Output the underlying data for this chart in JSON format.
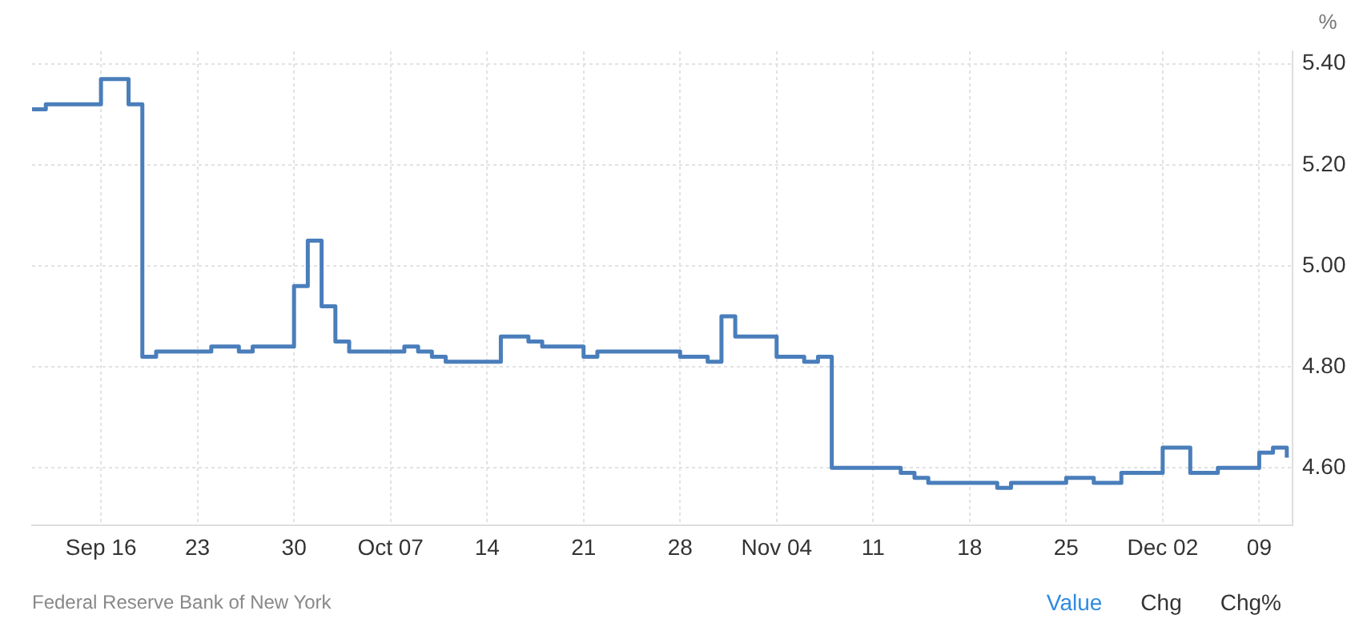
{
  "chart_data": {
    "type": "step",
    "ylabel": "%",
    "annotations": [
      "Federal Reserve Bank of New York",
      "Value",
      "Chg",
      "Chg%"
    ],
    "x": [
      "--09-11",
      "--09-12",
      "--09-16",
      "--09-18",
      "--09-19",
      "--09-20",
      "--09-24",
      "--09-26",
      "--09-27",
      "--09-30",
      "--10-01",
      "--10-02",
      "--10-03",
      "--10-04",
      "--10-08",
      "--10-09",
      "--10-10",
      "--10-11",
      "--10-15",
      "--10-17",
      "--10-18",
      "--10-21",
      "--10-22",
      "--10-28",
      "--10-30",
      "--10-31",
      "--11-01",
      "--11-04",
      "--11-06",
      "--11-07",
      "--11-08",
      "--11-13",
      "--11-14",
      "--11-15",
      "--11-20",
      "--11-21",
      "--11-25",
      "--11-27",
      "--11-29",
      "--12-02",
      "--12-04",
      "--12-06",
      "--12-09",
      "--12-10",
      "--12-11"
    ],
    "series": [
      {
        "color": "#4a7ebb",
        "values": [
          5.31,
          5.32,
          5.37,
          5.32,
          4.82,
          4.83,
          4.84,
          4.83,
          4.84,
          4.96,
          5.05,
          4.92,
          4.85,
          4.83,
          4.84,
          4.83,
          4.82,
          4.81,
          4.86,
          4.85,
          4.84,
          4.82,
          4.83,
          4.82,
          4.81,
          4.9,
          4.86,
          4.82,
          4.81,
          4.82,
          4.6,
          4.59,
          4.58,
          4.57,
          4.56,
          4.57,
          4.58,
          4.57,
          4.59,
          4.64,
          4.59,
          4.6,
          4.63,
          4.64,
          4.62
        ]
      }
    ],
    "xlim": [
      "--09-11",
      "--12-11T10:00"
    ],
    "xticks": [
      {
        "value": "--09-16",
        "label": "Sep 16"
      },
      {
        "value": "--09-23",
        "label": "23"
      },
      {
        "value": "--09-30",
        "label": "30"
      },
      {
        "value": "--10-07",
        "label": "Oct 07"
      },
      {
        "value": "--10-14",
        "label": "14"
      },
      {
        "value": "--10-21",
        "label": "21"
      },
      {
        "value": "--10-28",
        "label": "28"
      },
      {
        "value": "--11-04",
        "label": "Nov 04"
      },
      {
        "value": "--11-11",
        "label": "11"
      },
      {
        "value": "--11-18",
        "label": "18"
      },
      {
        "value": "--11-25",
        "label": "25"
      },
      {
        "value": "--12-02",
        "label": "Dec 02"
      },
      {
        "value": "--12-09",
        "label": "09"
      }
    ],
    "ylim": [
      4.486,
      5.425
    ],
    "yticks": [
      {
        "value": 4.6,
        "label": "4.60"
      },
      {
        "value": 4.8,
        "label": "4.80"
      },
      {
        "value": 5.0,
        "label": "5.00"
      },
      {
        "value": 5.2,
        "label": "5.20"
      },
      {
        "value": 5.4,
        "label": "5.40"
      }
    ],
    "grid": true,
    "legend": false,
    "marker": "none",
    "line_style": "solid"
  }
}
